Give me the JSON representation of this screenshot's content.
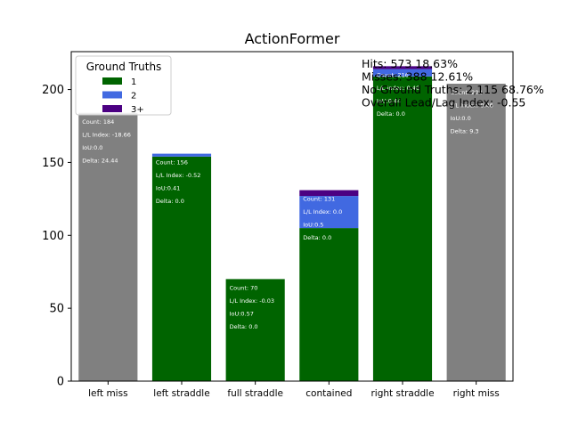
{
  "chart_data": {
    "type": "bar",
    "stacked": true,
    "title": "ActionFormer",
    "xlabel": "",
    "ylabel": "",
    "ylim": [
      0,
      226
    ],
    "yticks": [
      0,
      50,
      100,
      150,
      200
    ],
    "grid": false,
    "categories": [
      "left miss",
      "left straddle",
      "full straddle",
      "contained",
      "right straddle",
      "right miss"
    ],
    "colors": {
      "miss": "#808080",
      "1": "#006400",
      "2": "#4169e1",
      "3+": "#4b0082"
    },
    "series": [
      {
        "name": "miss",
        "values": [
          184,
          0,
          0,
          0,
          0,
          204
        ]
      },
      {
        "name": "1",
        "values": [
          0,
          154,
          70,
          105,
          209,
          0
        ]
      },
      {
        "name": "2",
        "values": [
          0,
          2,
          0,
          22,
          5,
          0
        ]
      },
      {
        "name": "3+",
        "values": [
          0,
          0,
          0,
          4,
          2,
          0
        ]
      }
    ],
    "totals": [
      184,
      156,
      70,
      131,
      216,
      204
    ],
    "legend": {
      "title": "Ground Truths",
      "position": "top-left",
      "entries": [
        "1",
        "2",
        "3+"
      ]
    },
    "bar_labels": [
      [
        "Count: 184",
        "L/L Index: -18.66",
        "IoU:0.0",
        "Delta: 24.44"
      ],
      [
        "Count: 156",
        "L/L Index: -0.52",
        "IoU:0.41",
        "Delta: 0.0"
      ],
      [
        "Count: 70",
        "L/L Index: -0.03",
        "IoU:0.57",
        "Delta: 0.0"
      ],
      [
        "Count: 131",
        "L/L Index: 0.0",
        "IoU:0.5",
        "Delta: 0.0"
      ],
      [
        "Count: 216",
        "L/L Index: 0.46",
        "IoU:0.44",
        "Delta: 0.0"
      ],
      [
        "Count: 204",
        "L/L Index: 8.46",
        "IoU:0.0",
        "Delta: 9.3"
      ]
    ],
    "annotations": [
      "Hits: 573  18.63%",
      "Misses: 388  12.61%",
      "No Ground Truths: 2,115  68.76%",
      "Overall Lead/Lag Index: -0.55"
    ]
  }
}
